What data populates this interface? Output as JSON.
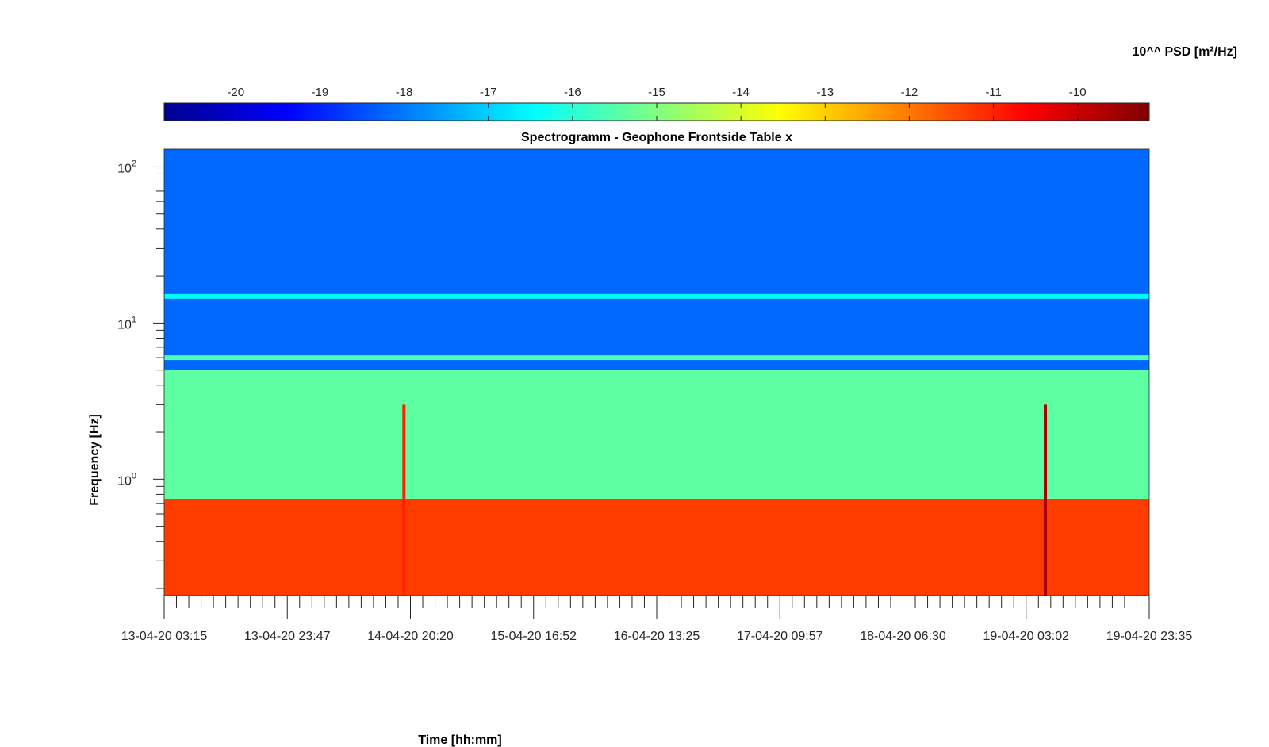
{
  "chart_data": {
    "type": "heatmap",
    "title": "Spectrogramm - Geophone Frontside Table x",
    "xlabel": "Time [hh:mm]",
    "ylabel": "Frequency [Hz]",
    "colorbar_label": "10^^ PSD [m²/Hz]",
    "colormap": "jet",
    "colorbar_ticks": [
      "-20",
      "-19",
      "-18",
      "-17",
      "-16",
      "-15",
      "-14",
      "-13",
      "-12",
      "-11",
      "-10"
    ],
    "colorbar_range": [
      -20.85,
      -9.15
    ],
    "x_tick_labels": [
      "13-04-20 03:15",
      "13-04-20 23:47",
      "14-04-20 20:20",
      "15-04-20 16:52",
      "16-04-20 13:25",
      "17-04-20 09:57",
      "18-04-20 06:30",
      "19-04-20 03:02",
      "19-04-20 23:35"
    ],
    "x_range_hours": [
      0,
      164.33
    ],
    "y_scale": "log",
    "y_range": [
      0.18,
      130
    ],
    "y_tick_labels": [
      {
        "value": 1,
        "base": "10",
        "exp": "0"
      },
      {
        "value": 10,
        "base": "10",
        "exp": "1"
      },
      {
        "value": 100,
        "base": "10",
        "exp": "2"
      }
    ],
    "features": [
      {
        "kind": "broadband_band",
        "freq_range_hz": [
          0.18,
          0.75
        ],
        "log10_psd": -11.3
      },
      {
        "kind": "mid_band",
        "freq_range_hz": [
          0.75,
          5
        ],
        "log10_psd": -15.4
      },
      {
        "kind": "upper_band",
        "freq_range_hz": [
          5,
          130
        ],
        "log10_psd": -18.2
      },
      {
        "kind": "narrow_line",
        "freq_hz": 6.0,
        "log10_psd": -15.6
      },
      {
        "kind": "narrow_line",
        "freq_hz": 14.8,
        "log10_psd": -16.5
      },
      {
        "kind": "transient",
        "time_hours": 40.0,
        "log10_psd": -11.0
      },
      {
        "kind": "transient",
        "time_hours": 147.0,
        "log10_psd": -9.6
      }
    ]
  }
}
